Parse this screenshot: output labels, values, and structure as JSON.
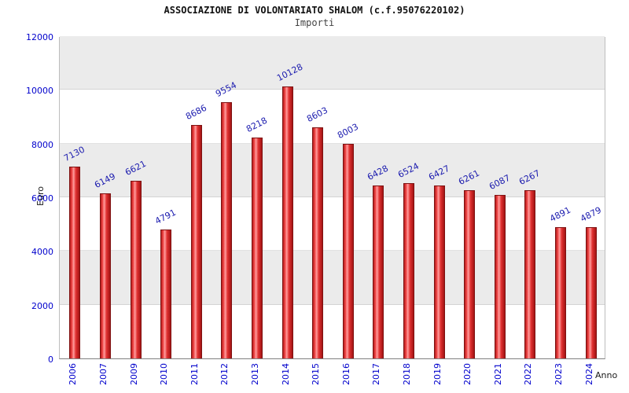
{
  "chart_data": {
    "type": "bar",
    "title": "ASSOCIAZIONE DI VOLONTARIATO SHALOM (c.f.95076220102)",
    "subtitle": "Importi",
    "xlabel": "Anno",
    "ylabel": "Euro",
    "categories": [
      "2006",
      "2007",
      "2009",
      "2010",
      "2011",
      "2012",
      "2013",
      "2014",
      "2015",
      "2016",
      "2017",
      "2018",
      "2019",
      "2020",
      "2021",
      "2022",
      "2023",
      "2024"
    ],
    "values": [
      7130,
      6149,
      6621,
      4791,
      8686,
      9554,
      8218,
      10128,
      8603,
      8003,
      6428,
      6524,
      6427,
      6261,
      6087,
      6267,
      4891,
      4879
    ],
    "ylim": [
      0,
      12000
    ],
    "ytick_step": 2000,
    "yticks": [
      0,
      2000,
      4000,
      6000,
      8000,
      10000,
      12000
    ],
    "grid": "alternating-horizontal-bands",
    "legend": "none",
    "colors": {
      "bar_fill": "#e03030",
      "bar_edge": "#7e1111",
      "value_label": "#1a1aae",
      "tick_label": "#0000cc",
      "band": "#ebebeb",
      "plot_border": "#bdbdbd"
    }
  }
}
